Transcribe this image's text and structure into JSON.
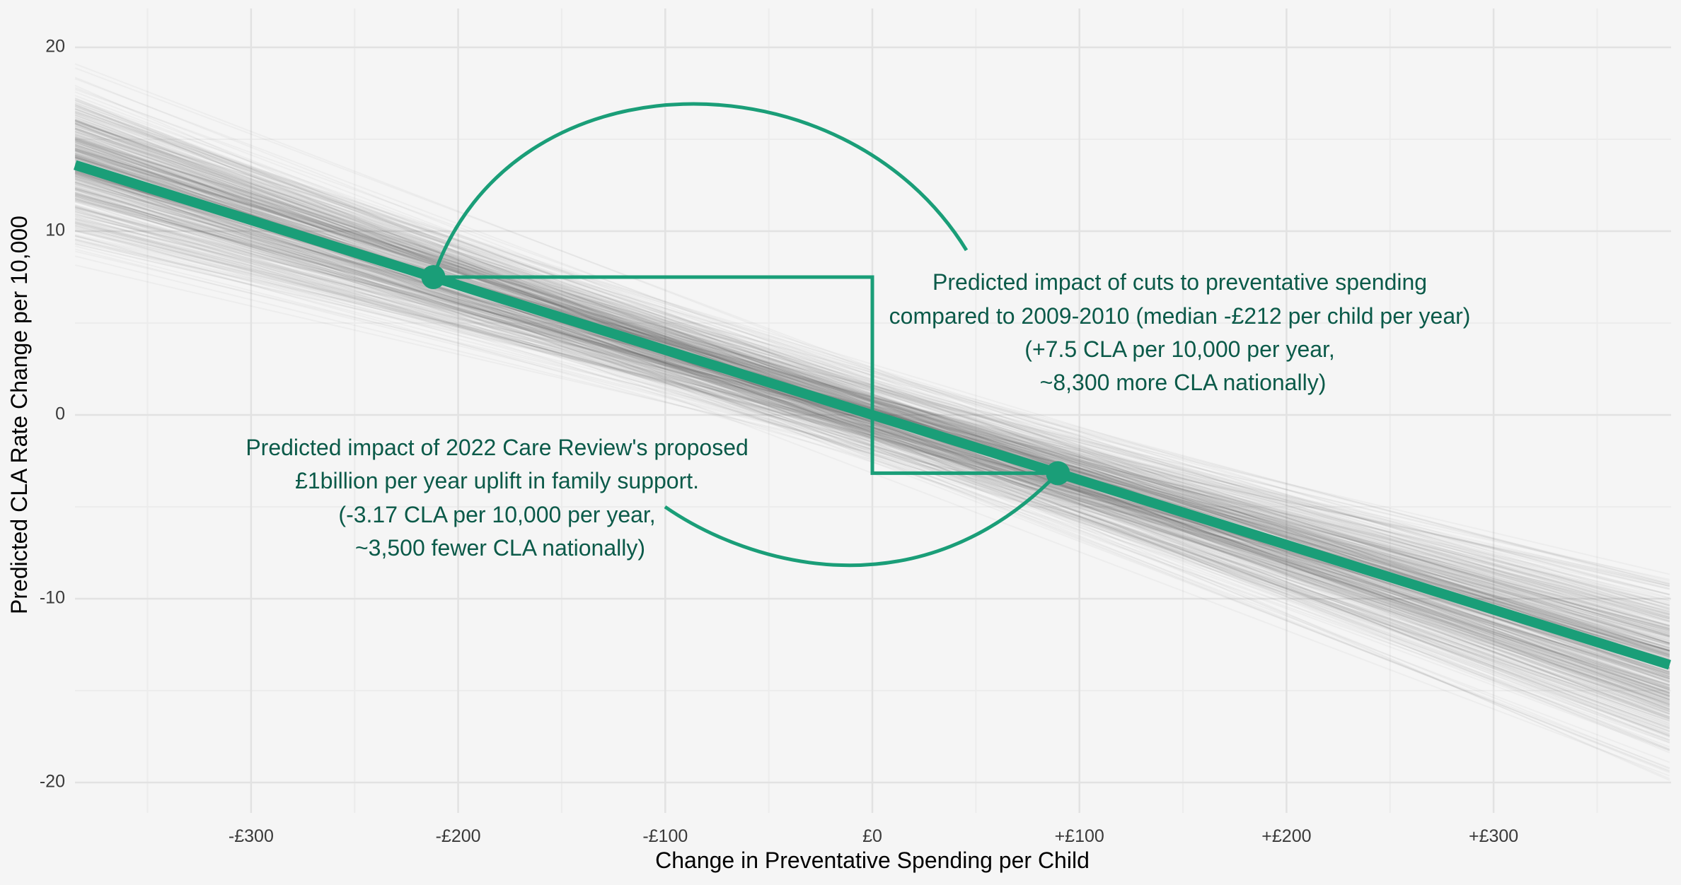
{
  "chart_data": {
    "type": "line",
    "xlabel": "Change in Preventative Spending per Child",
    "ylabel": "Predicted CLA Rate Change per 10,000",
    "xlim": [
      -385,
      385
    ],
    "ylim": [
      -22,
      22
    ],
    "x_ticks": [
      {
        "value": -300,
        "label": "-£300"
      },
      {
        "value": -200,
        "label": "-£200"
      },
      {
        "value": -100,
        "label": "-£100"
      },
      {
        "value": 0,
        "label": "£0"
      },
      {
        "value": 100,
        "label": "+£100"
      },
      {
        "value": 200,
        "label": "+£200"
      },
      {
        "value": 300,
        "label": "+£300"
      }
    ],
    "y_ticks": [
      {
        "value": 20,
        "label": "20"
      },
      {
        "value": 10,
        "label": "10"
      },
      {
        "value": 0,
        "label": "0"
      },
      {
        "value": -10,
        "label": "-10"
      },
      {
        "value": -20,
        "label": "-20"
      }
    ],
    "grid": true,
    "series": [
      {
        "role": "median",
        "slope_per_pound": -0.0354,
        "intercept": 0.0,
        "x": [
          -385,
          385
        ],
        "y": [
          13.6,
          -13.6
        ],
        "color": "#1a9e78"
      }
    ],
    "posterior_draws": {
      "count": 500,
      "color": "#3a3a3a",
      "slope_median": -0.0354,
      "intercept_range": [
        -2.5,
        2.5
      ]
    },
    "points": [
      {
        "x": -212,
        "y": 7.5,
        "color": "#1a9e78"
      },
      {
        "x": 89.6,
        "y": -3.17,
        "color": "#1a9e78"
      }
    ],
    "annotations": [
      {
        "lines": [
          "Predicted impact of cuts to preventative spending",
          "compared to 2009-2010 (median -£212 per child per year)",
          "(+7.5 CLA per 10,000 per year,",
          "~8,300 more CLA nationally)"
        ]
      },
      {
        "lines": [
          "Predicted impact of 2022 Care Review's proposed",
          "£1billion per year uplift in family support.",
          "(-3.17 CLA per 10,000 per year,",
          "~3,500 fewer CLA nationally)"
        ]
      }
    ],
    "colors": {
      "accent": "#1a9e78",
      "annotation_text": "#0b5a49",
      "background": "#f5f5f5",
      "grid_major": "#e2e2e2",
      "grid_minor": "#ececec"
    }
  }
}
